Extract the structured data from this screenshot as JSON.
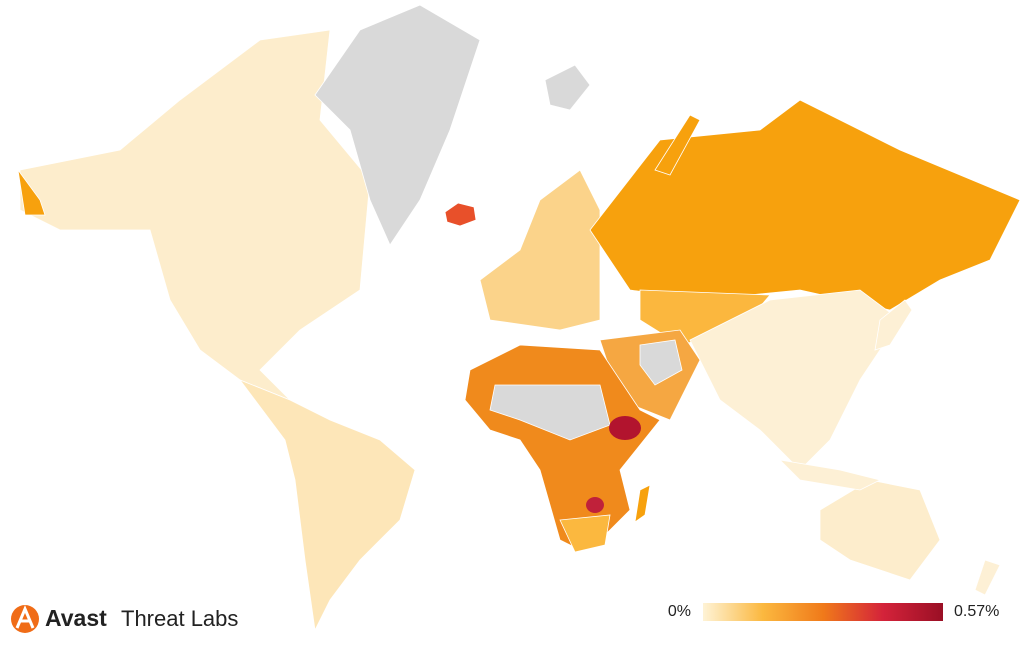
{
  "brand": {
    "name": "Avast",
    "product": "Threat Labs"
  },
  "legend": {
    "min": {
      "value": 0,
      "label": "0%"
    },
    "max": {
      "value": 0.57,
      "label": "0.57%"
    },
    "colors": [
      "#fef3d6",
      "#fbb83f",
      "#f07a1a",
      "#d4233a",
      "#9a0f25"
    ]
  }
}
